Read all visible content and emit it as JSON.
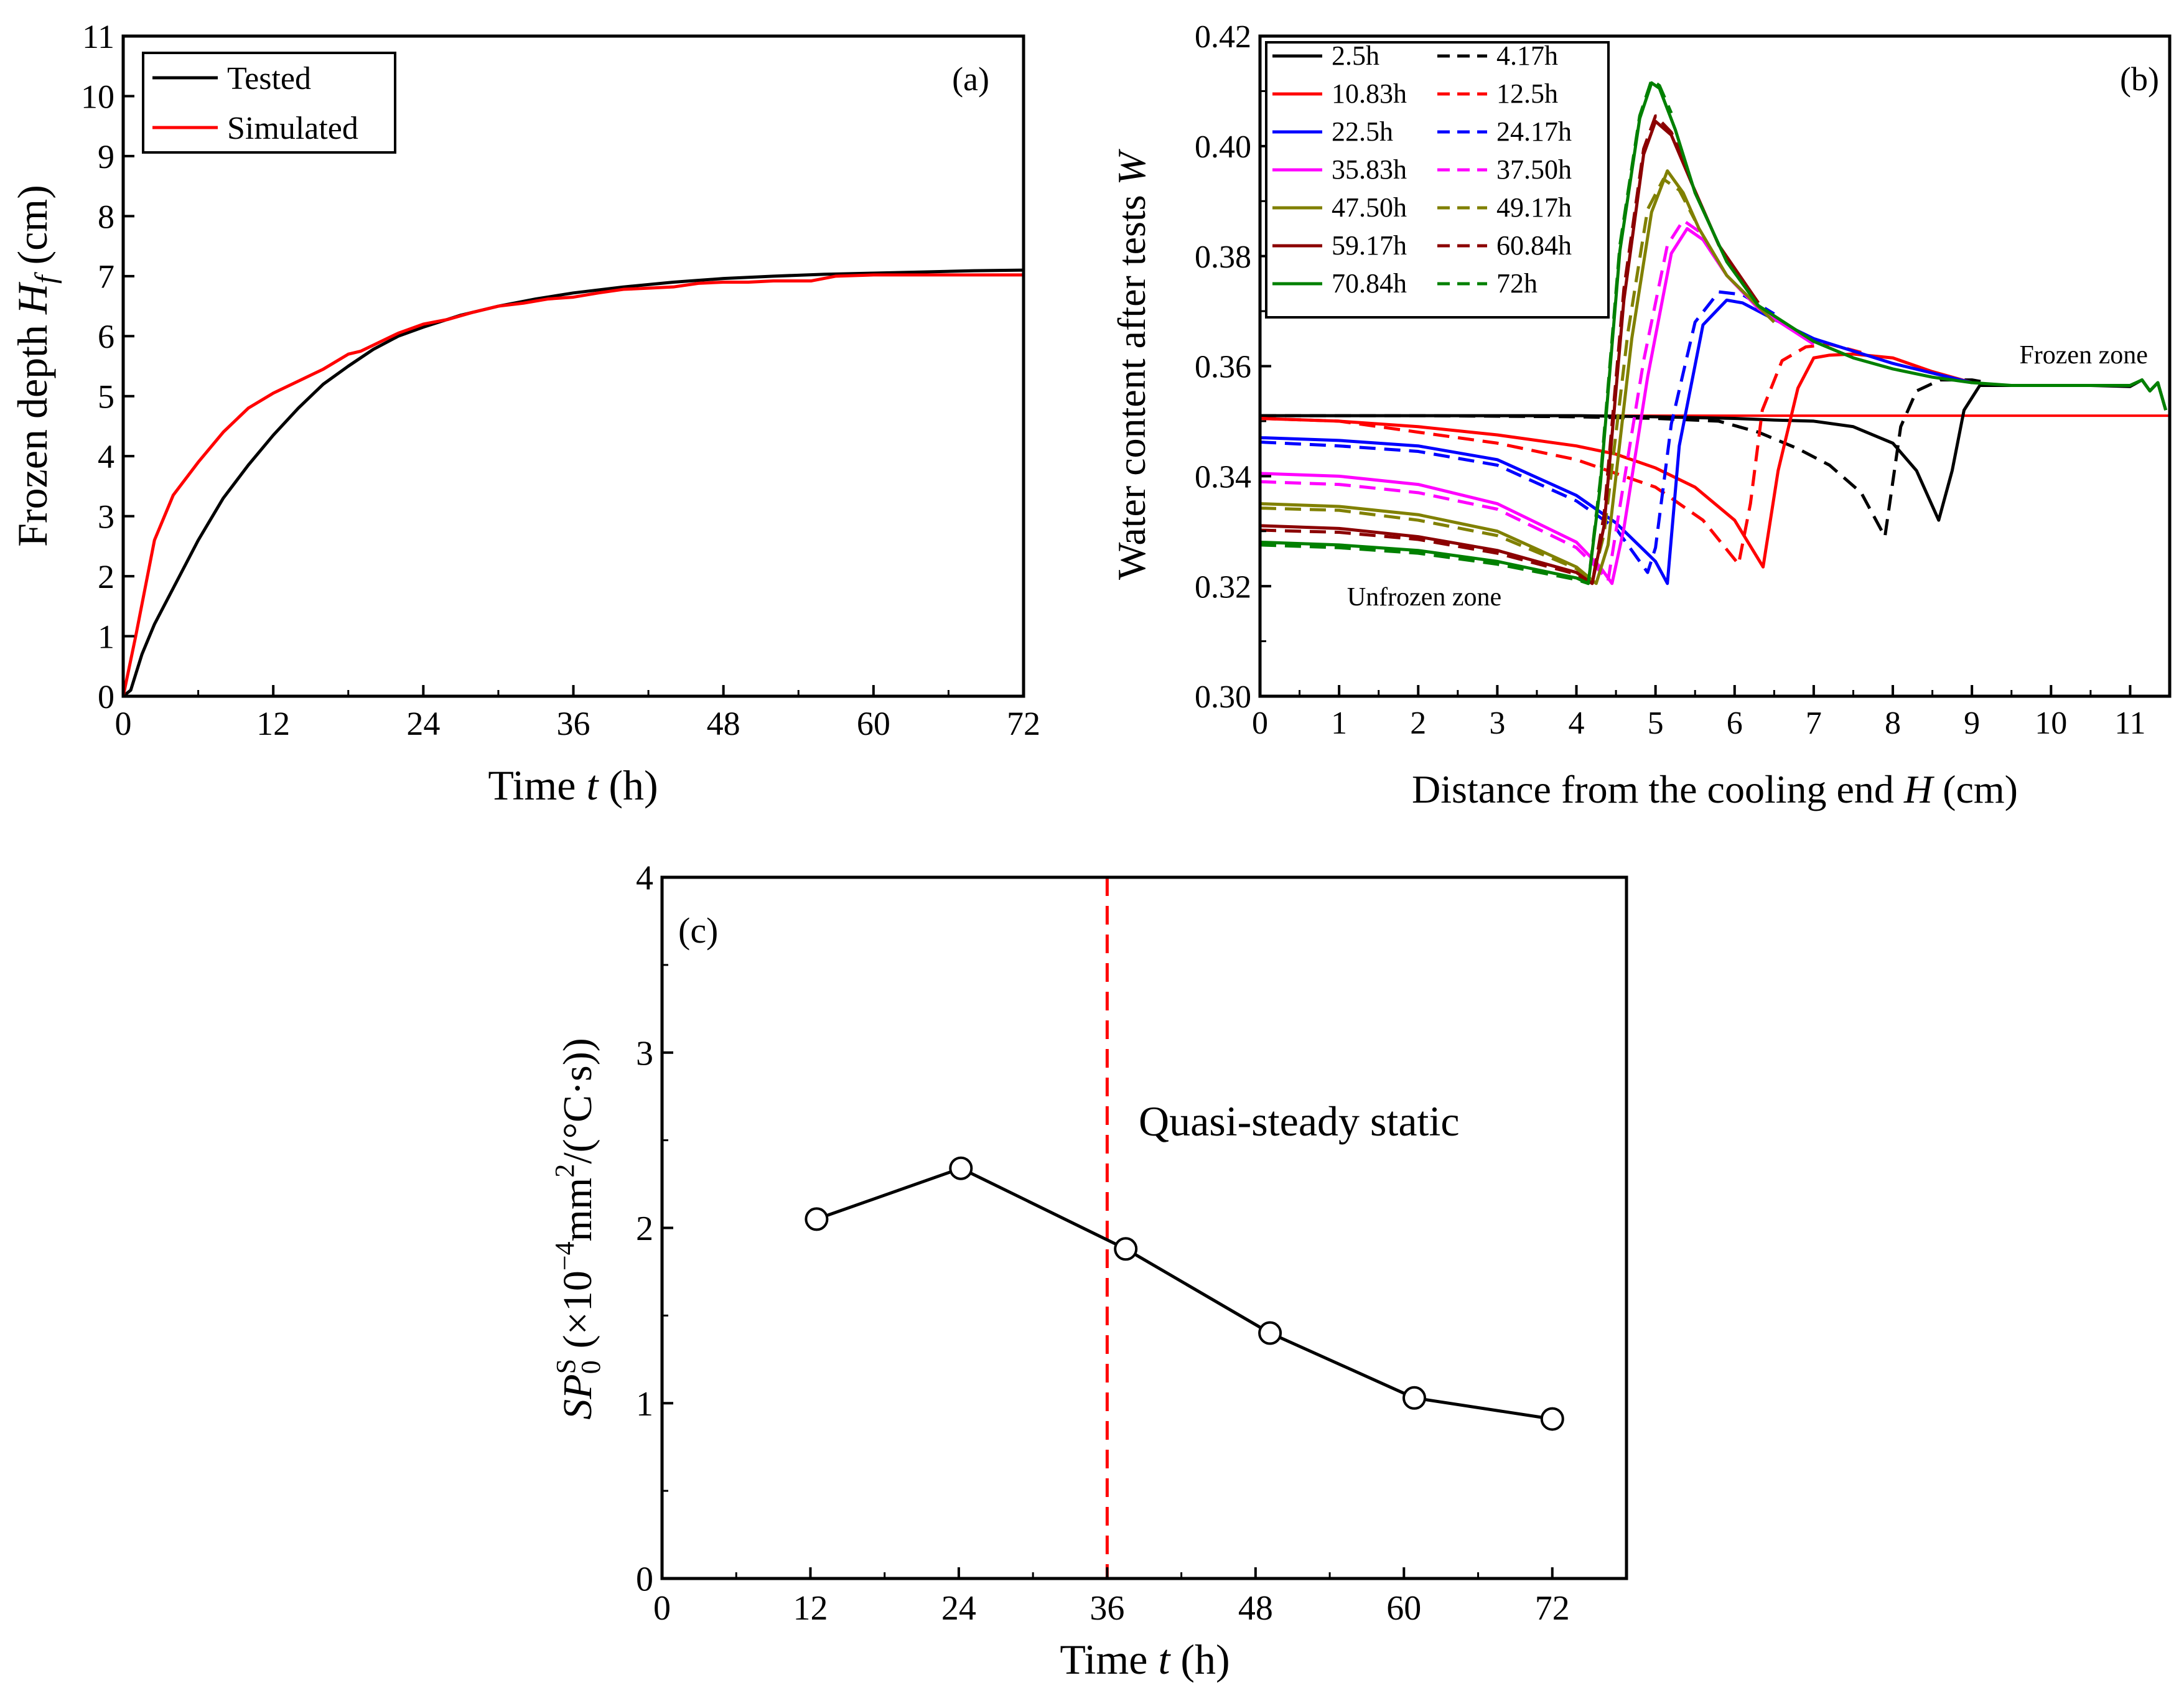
{
  "chart_data": [
    {
      "panel": "(a)",
      "type": "line",
      "xlabel": "Time t (h)",
      "ylabel": "Frozen depth Hf (cm)",
      "xlim": [
        0,
        72
      ],
      "ylim": [
        0,
        11
      ],
      "xticks": [
        0,
        12,
        24,
        36,
        48,
        60,
        72
      ],
      "yticks": [
        0,
        1,
        2,
        3,
        4,
        5,
        6,
        7,
        8,
        9,
        10,
        11
      ],
      "legend_position": "top-left",
      "series": [
        {
          "name": "Tested",
          "color": "#000000",
          "x": [
            0,
            0.6,
            1.5,
            2.5,
            4,
            6,
            8,
            10,
            12,
            14,
            16,
            18,
            20,
            22,
            24,
            27,
            30,
            33,
            36,
            40,
            44,
            48,
            52,
            56,
            60,
            64,
            68,
            72
          ],
          "y": [
            0,
            0.1,
            0.7,
            1.2,
            1.8,
            2.6,
            3.3,
            3.85,
            4.35,
            4.8,
            5.2,
            5.5,
            5.78,
            6.0,
            6.15,
            6.35,
            6.5,
            6.62,
            6.72,
            6.82,
            6.9,
            6.96,
            7.0,
            7.03,
            7.05,
            7.07,
            7.09,
            7.1
          ]
        },
        {
          "name": "Simulated",
          "color": "#ff0000",
          "x": [
            0,
            0.5,
            1,
            2.5,
            4,
            6,
            8,
            10,
            12,
            14,
            16,
            18,
            19,
            20,
            22,
            24,
            26,
            28,
            30,
            32,
            34,
            36,
            38,
            40,
            42,
            44,
            46,
            48,
            50,
            52,
            55,
            57,
            60,
            64,
            68,
            72
          ],
          "y": [
            0,
            0.5,
            1.0,
            2.6,
            3.35,
            3.9,
            4.4,
            4.8,
            5.05,
            5.25,
            5.45,
            5.7,
            5.75,
            5.85,
            6.05,
            6.2,
            6.28,
            6.4,
            6.5,
            6.55,
            6.62,
            6.65,
            6.72,
            6.78,
            6.8,
            6.82,
            6.88,
            6.9,
            6.9,
            6.92,
            6.92,
            7.0,
            7.02,
            7.02,
            7.02,
            7.02
          ]
        }
      ]
    },
    {
      "panel": "(b)",
      "type": "line",
      "xlabel": "Distance from the cooling end H (cm)",
      "ylabel": "Water content after tests W",
      "xlim": [
        0,
        11.5
      ],
      "ylim": [
        0.3,
        0.42
      ],
      "xticks": [
        0,
        1,
        2,
        3,
        4,
        5,
        6,
        7,
        8,
        9,
        10,
        11
      ],
      "yticks": [
        0.3,
        0.32,
        0.34,
        0.36,
        0.38,
        0.4,
        0.42
      ],
      "initial_water_content": 0.351,
      "initial_line_color": "#ff0000",
      "annotations": [
        {
          "text": "Frozen zone",
          "x": 9.6,
          "y": 0.3605
        },
        {
          "text": "Unfrozen zone",
          "x": 1.1,
          "y": 0.3165
        }
      ],
      "legend_position": "top-left",
      "series": [
        {
          "name": "2.5h",
          "color": "#000000",
          "dash": false,
          "x": [
            0,
            2,
            4,
            5,
            6,
            6.5,
            7,
            7.5,
            8,
            8.3,
            8.58,
            8.75,
            8.9,
            9.1,
            9.3,
            10,
            10.5,
            11,
            11.15,
            11.25,
            11.35,
            11.45
          ],
          "y": [
            0.351,
            0.351,
            0.351,
            0.3508,
            0.3505,
            0.3502,
            0.35,
            0.349,
            0.346,
            0.341,
            0.332,
            0.341,
            0.352,
            0.3565,
            0.3565,
            0.3565,
            0.3565,
            0.3563,
            0.3575,
            0.3555,
            0.357,
            0.352
          ]
        },
        {
          "name": "4.17h",
          "color": "#000000",
          "dash": true,
          "x": [
            0,
            2,
            4,
            5,
            5.8,
            6.3,
            6.8,
            7.2,
            7.6,
            7.9,
            8.1,
            8.3,
            8.6,
            9,
            9.2
          ],
          "y": [
            0.351,
            0.351,
            0.3508,
            0.3505,
            0.35,
            0.348,
            0.345,
            0.342,
            0.337,
            0.329,
            0.349,
            0.3555,
            0.3575,
            0.3575,
            0.357
          ]
        },
        {
          "name": "10.83h",
          "color": "#ff0000",
          "dash": false,
          "x": [
            0,
            1,
            2,
            3,
            4,
            4.5,
            5,
            5.5,
            6,
            6.36,
            6.55,
            6.8,
            7.0,
            7.2,
            7.5,
            8,
            8.5,
            9
          ],
          "y": [
            0.3505,
            0.35,
            0.349,
            0.3475,
            0.3455,
            0.344,
            0.3415,
            0.338,
            0.332,
            0.3235,
            0.341,
            0.356,
            0.3615,
            0.362,
            0.3622,
            0.3615,
            0.359,
            0.357
          ]
        },
        {
          "name": "12.5h",
          "color": "#ff0000",
          "dash": true,
          "x": [
            0,
            1,
            2,
            3,
            4,
            5,
            5.6,
            6.05,
            6.2,
            6.35,
            6.6,
            6.9,
            7.2,
            7.6
          ],
          "y": [
            0.3505,
            0.35,
            0.348,
            0.346,
            0.343,
            0.338,
            0.332,
            0.324,
            0.335,
            0.352,
            0.361,
            0.3635,
            0.364,
            0.3625
          ]
        },
        {
          "name": "22.5h",
          "color": "#0000ff",
          "dash": false,
          "x": [
            0,
            1,
            2,
            3,
            4,
            4.5,
            5.0,
            5.15,
            5.3,
            5.6,
            5.9,
            6.1,
            6.5,
            7,
            8,
            9
          ],
          "y": [
            0.347,
            0.3465,
            0.3455,
            0.343,
            0.3365,
            0.3315,
            0.3245,
            0.3205,
            0.3455,
            0.3675,
            0.372,
            0.3715,
            0.3685,
            0.365,
            0.3605,
            0.357
          ]
        },
        {
          "name": "24.17h",
          "color": "#0000ff",
          "dash": true,
          "x": [
            0,
            1,
            2,
            3,
            4,
            4.5,
            4.9,
            5.0,
            5.2,
            5.5,
            5.8,
            6.1,
            6.5
          ],
          "y": [
            0.3462,
            0.3455,
            0.3445,
            0.342,
            0.3355,
            0.3305,
            0.3225,
            0.327,
            0.3495,
            0.368,
            0.3735,
            0.373,
            0.3695
          ]
        },
        {
          "name": "35.83h",
          "color": "#ff00ff",
          "dash": false,
          "x": [
            0,
            1,
            2,
            3,
            4,
            4.3,
            4.45,
            4.6,
            4.9,
            5.2,
            5.4,
            5.6,
            5.9,
            6.3,
            7
          ],
          "y": [
            0.3405,
            0.34,
            0.3385,
            0.335,
            0.328,
            0.3235,
            0.3205,
            0.3305,
            0.358,
            0.3805,
            0.385,
            0.383,
            0.3765,
            0.3705,
            0.364
          ]
        },
        {
          "name": "37.50h",
          "color": "#ff00ff",
          "dash": true,
          "x": [
            0,
            1,
            2,
            3,
            4,
            4.25,
            4.4,
            4.55,
            4.85,
            5.15,
            5.35,
            5.55,
            5.9
          ],
          "y": [
            0.339,
            0.3385,
            0.337,
            0.334,
            0.327,
            0.3235,
            0.321,
            0.3345,
            0.361,
            0.382,
            0.3865,
            0.3845,
            0.3765
          ]
        },
        {
          "name": "47.50h",
          "color": "#808000",
          "dash": false,
          "x": [
            0,
            1,
            2,
            3,
            4,
            4.25,
            4.4,
            4.7,
            4.95,
            5.15,
            5.35,
            5.55,
            5.9,
            6.5
          ],
          "y": [
            0.335,
            0.3345,
            0.333,
            0.33,
            0.3235,
            0.3205,
            0.3275,
            0.365,
            0.388,
            0.3955,
            0.3915,
            0.385,
            0.3765,
            0.368
          ]
        },
        {
          "name": "49.17h",
          "color": "#808000",
          "dash": true,
          "x": [
            0,
            1,
            2,
            3,
            4,
            4.2,
            4.35,
            4.65,
            4.9,
            5.1,
            5.3,
            5.5
          ],
          "y": [
            0.3342,
            0.3338,
            0.332,
            0.3292,
            0.3232,
            0.321,
            0.3295,
            0.366,
            0.3885,
            0.394,
            0.392,
            0.3865
          ]
        },
        {
          "name": "59.17h",
          "color": "#8b0000",
          "dash": false,
          "x": [
            0,
            1,
            2,
            3,
            4,
            4.2,
            4.35,
            4.6,
            4.85,
            5.0,
            5.2,
            5.45,
            5.8,
            6.3
          ],
          "y": [
            0.331,
            0.3305,
            0.329,
            0.3265,
            0.3225,
            0.3205,
            0.331,
            0.372,
            0.3985,
            0.4045,
            0.402,
            0.3935,
            0.382,
            0.3715
          ]
        },
        {
          "name": "60.84h",
          "color": "#8b0000",
          "dash": true,
          "x": [
            0,
            1,
            2,
            3,
            4,
            4.2,
            4.35,
            4.6,
            4.85,
            5.0,
            5.2,
            5.4
          ],
          "y": [
            0.3302,
            0.3298,
            0.3285,
            0.326,
            0.3222,
            0.3205,
            0.333,
            0.374,
            0.3995,
            0.4055,
            0.4025,
            0.396
          ]
        },
        {
          "name": "70.84h",
          "color": "#008000",
          "dash": false,
          "x": [
            0,
            1,
            2,
            3,
            4,
            4.15,
            4.3,
            4.55,
            4.8,
            4.95,
            5.05,
            5.25,
            5.5,
            5.9,
            6.3,
            7,
            7.5,
            8,
            8.5,
            9,
            9.5,
            10,
            10.5,
            11,
            11.15,
            11.25,
            11.35,
            11.45
          ],
          "y": [
            0.328,
            0.3275,
            0.3265,
            0.3245,
            0.3215,
            0.3205,
            0.338,
            0.381,
            0.405,
            0.4115,
            0.4105,
            0.403,
            0.3915,
            0.379,
            0.371,
            0.3645,
            0.3615,
            0.3595,
            0.358,
            0.357,
            0.3565,
            0.3565,
            0.3565,
            0.3565,
            0.3575,
            0.3555,
            0.357,
            0.352
          ]
        },
        {
          "name": "72h",
          "color": "#008000",
          "dash": true,
          "x": [
            0,
            1,
            2,
            3,
            4,
            4.15,
            4.3,
            4.55,
            4.8,
            4.95,
            5.05,
            5.2
          ],
          "y": [
            0.3275,
            0.327,
            0.326,
            0.324,
            0.3212,
            0.3205,
            0.339,
            0.382,
            0.4055,
            0.412,
            0.411,
            0.406
          ]
        }
      ]
    },
    {
      "panel": "(c)",
      "type": "line",
      "xlabel": "Time t (h)",
      "ylabel": "SP0S (×10−4mm2/(°C·s))",
      "xlim": [
        0,
        78
      ],
      "ylim": [
        0,
        4
      ],
      "xticks": [
        0,
        12,
        24,
        36,
        48,
        60,
        72
      ],
      "yticks": [
        0,
        1,
        2,
        3,
        4
      ],
      "vline": {
        "x": 36,
        "color": "#ff0000",
        "dash": true
      },
      "annotation": "Quasi-steady static",
      "series": [
        {
          "color": "#000000",
          "marker": "open-circle",
          "x": [
            12.5,
            24.17,
            37.5,
            49.17,
            60.84,
            72
          ],
          "y": [
            2.05,
            2.34,
            1.88,
            1.4,
            1.03,
            0.91
          ]
        }
      ]
    }
  ]
}
